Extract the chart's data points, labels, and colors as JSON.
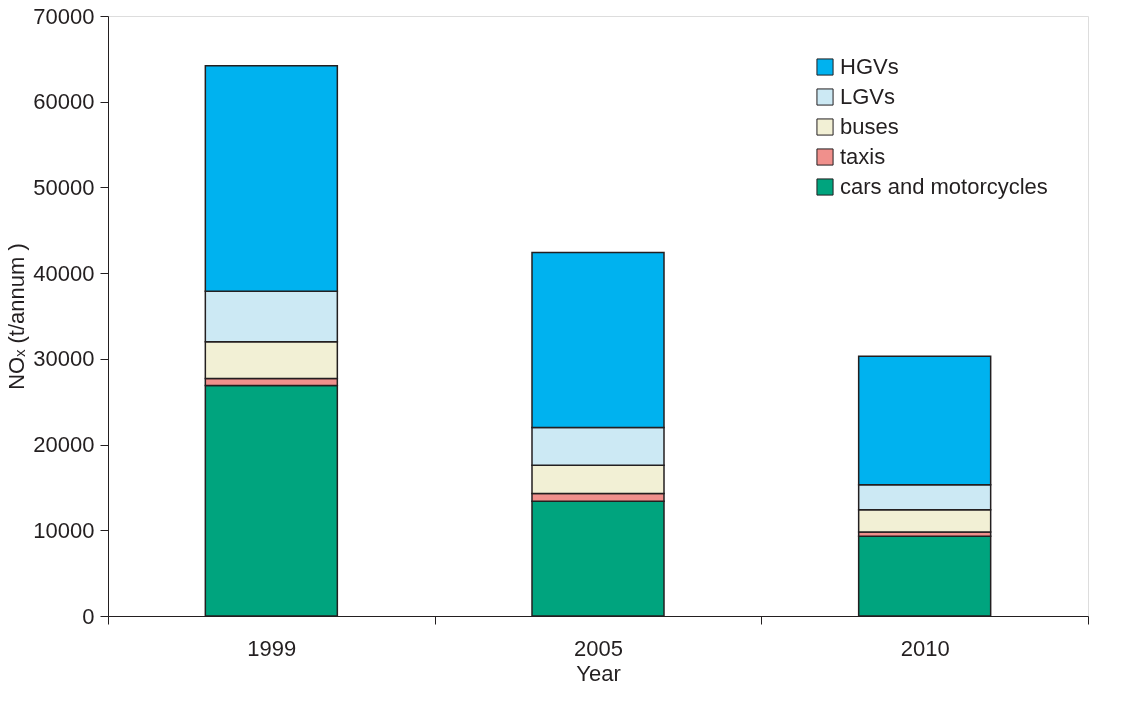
{
  "chart_data": {
    "type": "bar",
    "stacked": true,
    "xlabel": "Year",
    "ylabel": "NOₓ (t/annum )",
    "categories": [
      "1999",
      "2005",
      "2010"
    ],
    "series": [
      {
        "name": "cars and motorcycles",
        "color": "#00a47e",
        "values": [
          26900,
          13400,
          9300
        ]
      },
      {
        "name": "taxis",
        "color": "#f0908c",
        "values": [
          800,
          900,
          500
        ]
      },
      {
        "name": "buses",
        "color": "#f2f0d5",
        "values": [
          4300,
          3300,
          2600
        ]
      },
      {
        "name": "LGVs",
        "color": "#cce9f4",
        "values": [
          5900,
          4400,
          2900
        ]
      },
      {
        "name": "HGVs",
        "color": "#00b2ef",
        "values": [
          26300,
          20400,
          15000
        ]
      }
    ],
    "ylim": [
      0,
      70000
    ],
    "yticks": [
      0,
      10000,
      20000,
      30000,
      40000,
      50000,
      60000,
      70000
    ],
    "grid": false,
    "legend": "top right"
  }
}
